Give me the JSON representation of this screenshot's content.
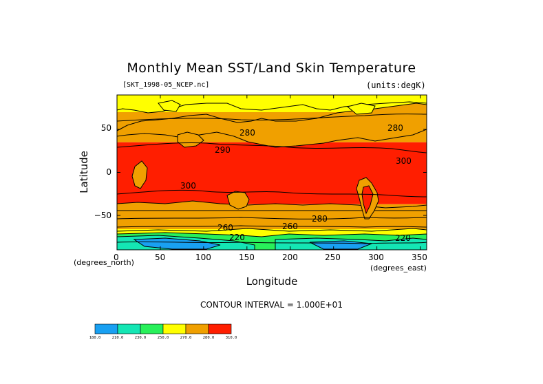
{
  "plot": {
    "title": "Monthly Mean SST/Land Skin Temperature",
    "file_label": "[SKT_1998-05_NCEP.nc]",
    "units_label": "(units:degK)",
    "y_axis_label": "Latitude",
    "x_axis_label": "Longitude",
    "x_unit_label": "(degrees_north)",
    "y_unit_label": "(degrees_east)",
    "contour_interval_text": "CONTOUR INTERVAL = 1.000E+01",
    "y_ticks": [
      "50",
      "0",
      "−50"
    ],
    "x_ticks": [
      "0",
      "50",
      "100",
      "150",
      "200",
      "250",
      "300",
      "350"
    ],
    "contour_labels": [
      "280",
      "280",
      "290",
      "300",
      "300",
      "280",
      "260",
      "220",
      "220",
      "260"
    ]
  },
  "colorbar": {
    "labels": [
      "180.0",
      "210.0",
      "230.0",
      "250.0",
      "270.0",
      "280.0",
      "310.0"
    ],
    "colors": [
      "#19a0f2",
      "#14e6b4",
      "#28f05a",
      "#ffff00",
      "#f0a000",
      "#ff1e00"
    ]
  },
  "chart_data": {
    "type": "heatmap",
    "title": "Monthly Mean SST/Land Skin Temperature",
    "xlabel": "Longitude",
    "ylabel": "Latitude",
    "xlim": [
      0,
      357.5
    ],
    "ylim": [
      -90,
      90
    ],
    "x_ticks": [
      0,
      50,
      100,
      150,
      200,
      250,
      300,
      350
    ],
    "y_ticks": [
      50,
      0,
      -50
    ],
    "contour_interval": 10,
    "units": "degK",
    "color_levels": [
      180,
      210,
      230,
      250,
      270,
      280,
      310
    ],
    "zonal_bands_degK": [
      {
        "lat_range": [
          70,
          90
        ],
        "level": 270,
        "color": "#ffff00"
      },
      {
        "lat_range": [
          35,
          70
        ],
        "level": 280,
        "color": "#f0a000"
      },
      {
        "lat_range": [
          -37,
          35
        ],
        "level": 300,
        "color": "#ff1e00"
      },
      {
        "lat_range": [
          -66,
          -37
        ],
        "level": 280,
        "color": "#f0a000"
      },
      {
        "lat_range": [
          -72,
          -66
        ],
        "level": 260,
        "color": "#ffff00"
      },
      {
        "lat_range": [
          -78,
          -72
        ],
        "level": 230,
        "color": "#28f05a"
      },
      {
        "lat_range": [
          -90,
          -78
        ],
        "level": 220,
        "color": "#14e6b4"
      }
    ]
  }
}
